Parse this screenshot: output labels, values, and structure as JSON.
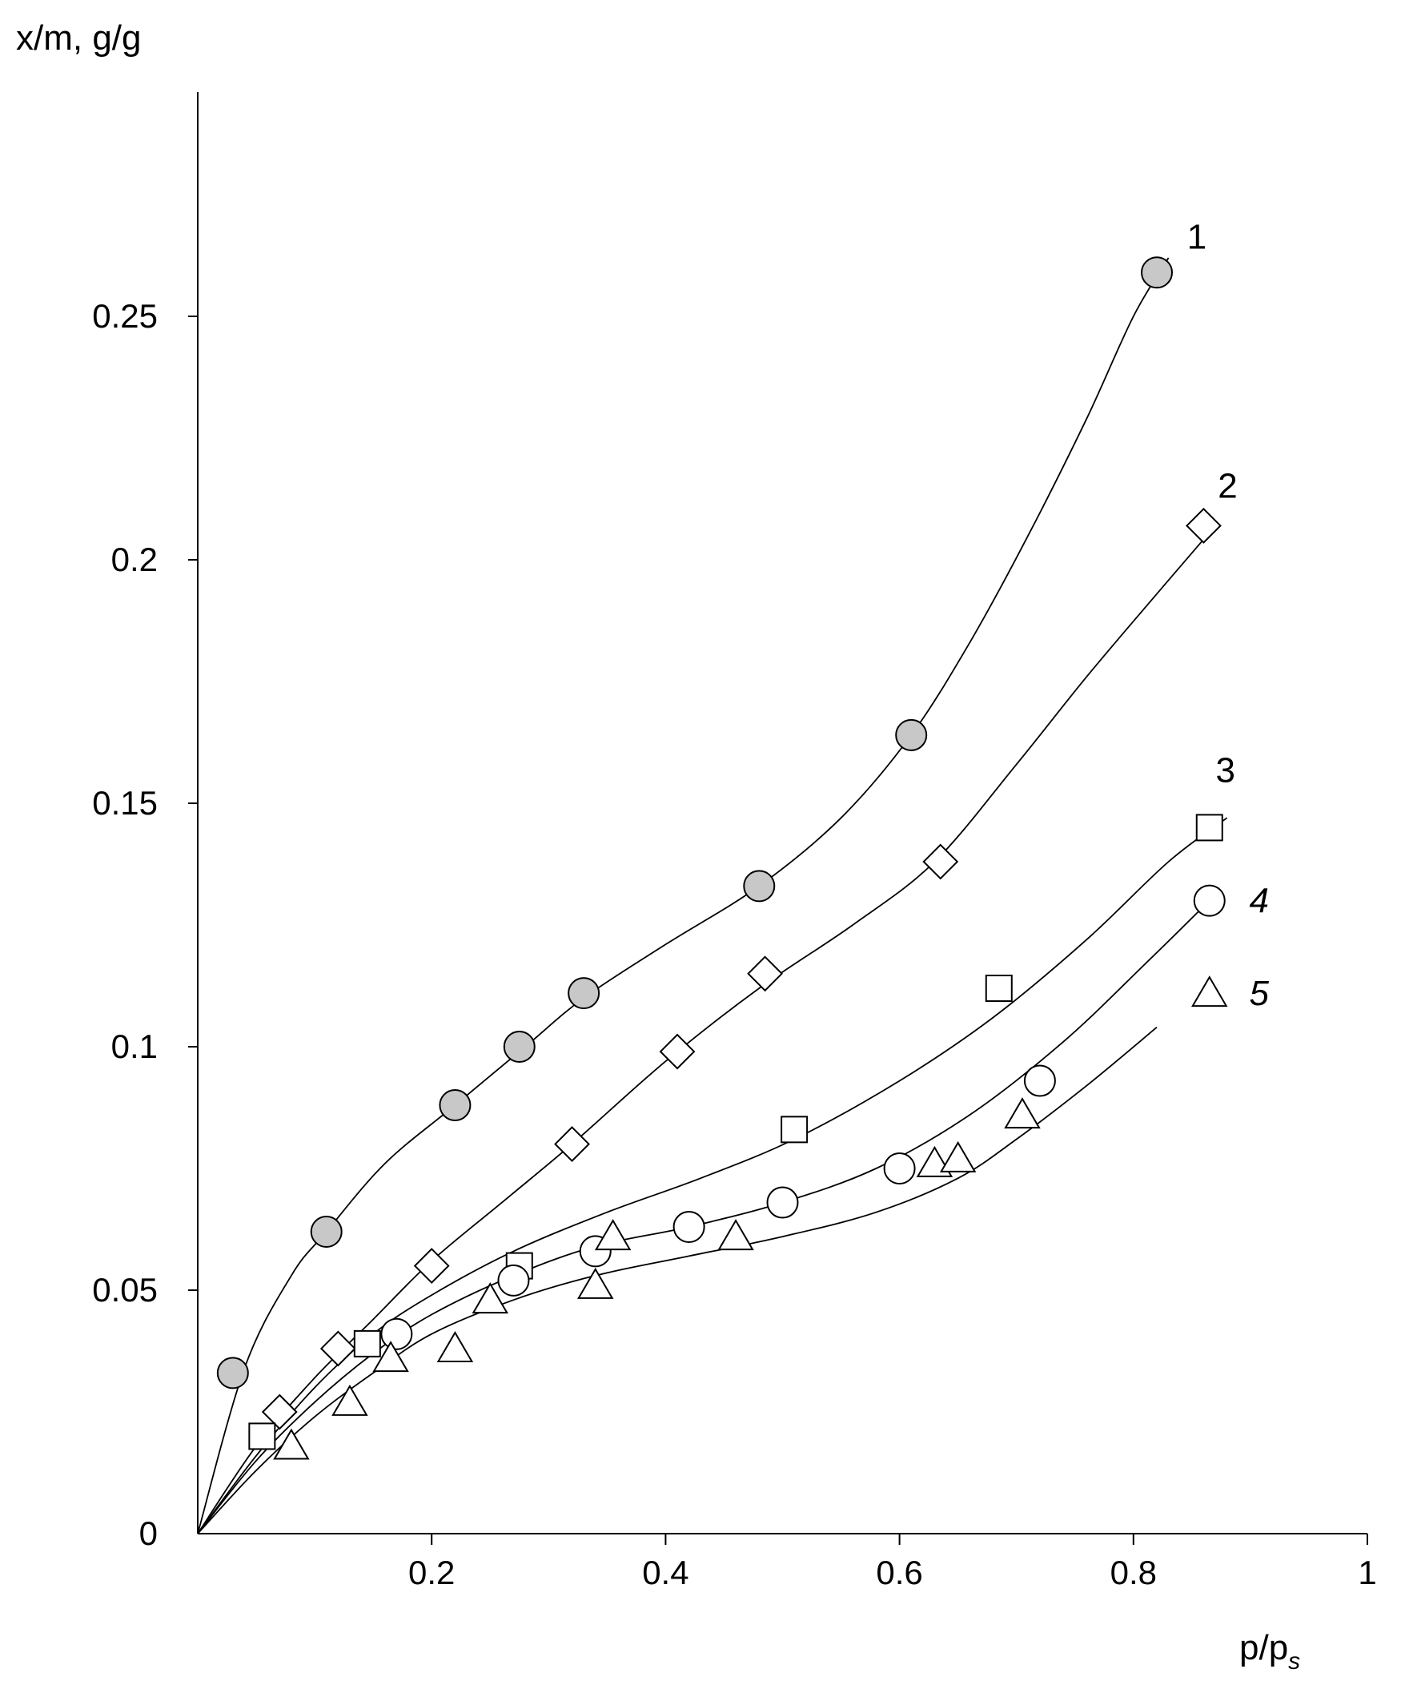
{
  "chart_data": {
    "type": "scatter",
    "title": "",
    "xlabel": "p/p",
    "xlabel_sub": "s",
    "ylabel": "x/m, g/g",
    "xlim": [
      0,
      1
    ],
    "ylim": [
      0,
      0.3
    ],
    "xticks": [
      {
        "value": 0.2,
        "label": "0.2"
      },
      {
        "value": 0.4,
        "label": "0.4"
      },
      {
        "value": 0.6,
        "label": "0.6"
      },
      {
        "value": 0.8,
        "label": "0.8"
      },
      {
        "value": 1.0,
        "label": "1"
      }
    ],
    "yticks": [
      {
        "value": 0,
        "label": "0"
      },
      {
        "value": 0.05,
        "label": "0.05"
      },
      {
        "value": 0.1,
        "label": "0.1"
      },
      {
        "value": 0.15,
        "label": "0.15"
      },
      {
        "value": 0.2,
        "label": "0.2"
      },
      {
        "value": 0.25,
        "label": "0.25"
      }
    ],
    "grid": false,
    "series": [
      {
        "label": "1",
        "label_italic": false,
        "marker": "circle-filled",
        "marker_fill": "#c8c8c8",
        "points": [
          [
            0.03,
            0.033
          ],
          [
            0.11,
            0.062
          ],
          [
            0.22,
            0.088
          ],
          [
            0.275,
            0.1
          ],
          [
            0.33,
            0.111
          ],
          [
            0.48,
            0.133
          ],
          [
            0.61,
            0.164
          ],
          [
            0.82,
            0.259
          ]
        ],
        "curve": [
          [
            0,
            0
          ],
          [
            0.04,
            0.034
          ],
          [
            0.08,
            0.053
          ],
          [
            0.11,
            0.062
          ],
          [
            0.16,
            0.076
          ],
          [
            0.22,
            0.088
          ],
          [
            0.28,
            0.1
          ],
          [
            0.33,
            0.11
          ],
          [
            0.4,
            0.121
          ],
          [
            0.48,
            0.133
          ],
          [
            0.55,
            0.147
          ],
          [
            0.61,
            0.164
          ],
          [
            0.66,
            0.183
          ],
          [
            0.71,
            0.205
          ],
          [
            0.76,
            0.229
          ],
          [
            0.8,
            0.25
          ],
          [
            0.83,
            0.262
          ]
        ]
      },
      {
        "label": "2",
        "label_italic": false,
        "marker": "diamond",
        "marker_fill": "#ffffff",
        "points": [
          [
            0.07,
            0.025
          ],
          [
            0.12,
            0.038
          ],
          [
            0.2,
            0.055
          ],
          [
            0.32,
            0.08
          ],
          [
            0.41,
            0.099
          ],
          [
            0.485,
            0.115
          ],
          [
            0.635,
            0.138
          ],
          [
            0.86,
            0.207
          ]
        ],
        "curve": [
          [
            0,
            0
          ],
          [
            0.05,
            0.018
          ],
          [
            0.1,
            0.032
          ],
          [
            0.15,
            0.044
          ],
          [
            0.2,
            0.056
          ],
          [
            0.26,
            0.068
          ],
          [
            0.32,
            0.08
          ],
          [
            0.4,
            0.097
          ],
          [
            0.48,
            0.112
          ],
          [
            0.56,
            0.125
          ],
          [
            0.63,
            0.138
          ],
          [
            0.7,
            0.158
          ],
          [
            0.76,
            0.176
          ],
          [
            0.82,
            0.193
          ],
          [
            0.87,
            0.207
          ]
        ]
      },
      {
        "label": "3",
        "label_italic": false,
        "marker": "square",
        "marker_fill": "#ffffff",
        "points": [
          [
            0.055,
            0.02
          ],
          [
            0.145,
            0.039
          ],
          [
            0.275,
            0.055
          ],
          [
            0.51,
            0.083
          ],
          [
            0.685,
            0.112
          ],
          [
            0.865,
            0.145
          ]
        ],
        "curve": [
          [
            0,
            0
          ],
          [
            0.05,
            0.016
          ],
          [
            0.1,
            0.03
          ],
          [
            0.15,
            0.041
          ],
          [
            0.2,
            0.049
          ],
          [
            0.27,
            0.058
          ],
          [
            0.35,
            0.066
          ],
          [
            0.43,
            0.073
          ],
          [
            0.51,
            0.081
          ],
          [
            0.6,
            0.093
          ],
          [
            0.68,
            0.106
          ],
          [
            0.76,
            0.122
          ],
          [
            0.83,
            0.138
          ],
          [
            0.88,
            0.147
          ]
        ]
      },
      {
        "label": "4",
        "label_italic": true,
        "marker": "circle-open",
        "marker_fill": "#ffffff",
        "points": [
          [
            0.17,
            0.041
          ],
          [
            0.27,
            0.052
          ],
          [
            0.34,
            0.058
          ],
          [
            0.42,
            0.063
          ],
          [
            0.5,
            0.068
          ],
          [
            0.6,
            0.075
          ],
          [
            0.72,
            0.093
          ],
          [
            0.865,
            0.13
          ]
        ],
        "curve": [
          [
            0,
            0
          ],
          [
            0.05,
            0.015
          ],
          [
            0.1,
            0.027
          ],
          [
            0.15,
            0.037
          ],
          [
            0.2,
            0.045
          ],
          [
            0.27,
            0.053
          ],
          [
            0.34,
            0.059
          ],
          [
            0.42,
            0.063
          ],
          [
            0.5,
            0.068
          ],
          [
            0.58,
            0.075
          ],
          [
            0.66,
            0.086
          ],
          [
            0.74,
            0.101
          ],
          [
            0.81,
            0.117
          ],
          [
            0.865,
            0.13
          ]
        ]
      },
      {
        "label": "5",
        "label_italic": true,
        "marker": "triangle",
        "marker_fill": "#ffffff",
        "points": [
          [
            0.08,
            0.018
          ],
          [
            0.13,
            0.027
          ],
          [
            0.165,
            0.036
          ],
          [
            0.22,
            0.038
          ],
          [
            0.25,
            0.048
          ],
          [
            0.34,
            0.051
          ],
          [
            0.355,
            0.061
          ],
          [
            0.46,
            0.061
          ],
          [
            0.63,
            0.076
          ],
          [
            0.65,
            0.077
          ],
          [
            0.705,
            0.086
          ],
          [
            0.865,
            0.111
          ]
        ],
        "curve": [
          [
            0,
            0
          ],
          [
            0.05,
            0.013
          ],
          [
            0.1,
            0.024
          ],
          [
            0.15,
            0.033
          ],
          [
            0.2,
            0.041
          ],
          [
            0.27,
            0.048
          ],
          [
            0.34,
            0.053
          ],
          [
            0.42,
            0.057
          ],
          [
            0.5,
            0.061
          ],
          [
            0.58,
            0.066
          ],
          [
            0.65,
            0.073
          ],
          [
            0.7,
            0.081
          ],
          [
            0.76,
            0.092
          ],
          [
            0.82,
            0.104
          ]
        ]
      }
    ]
  }
}
